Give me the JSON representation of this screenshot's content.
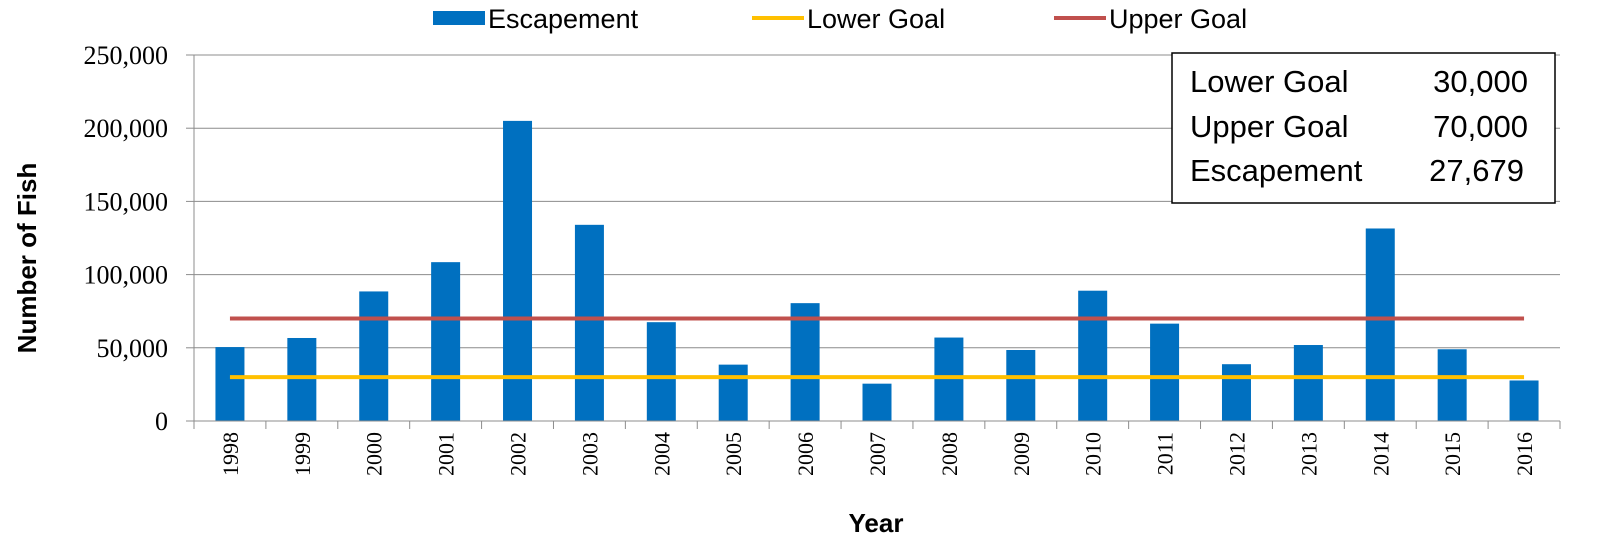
{
  "chart_data": {
    "type": "bar",
    "xlabel": "Year",
    "ylabel": "Number of Fish",
    "ylim": [
      0,
      250000
    ],
    "yticks": [
      0,
      50000,
      100000,
      150000,
      200000,
      250000
    ],
    "ytick_labels": [
      "0",
      "50,000",
      "100,000",
      "150,000",
      "200,000",
      "250,000"
    ],
    "grid": true,
    "legend_position": "top",
    "categories": [
      "1998",
      "1999",
      "2000",
      "2001",
      "2002",
      "2003",
      "2004",
      "2005",
      "2006",
      "2007",
      "2008",
      "2009",
      "2010",
      "2011",
      "2012",
      "2013",
      "2014",
      "2015",
      "2016"
    ],
    "series": [
      {
        "name": "Escapement",
        "kind": "bar",
        "color": "#0070C0",
        "values": [
          50500,
          56700,
          88500,
          108500,
          205000,
          134000,
          67500,
          38500,
          80500,
          25500,
          57000,
          48500,
          89000,
          66500,
          38800,
          51900,
          131500,
          49000,
          27679
        ]
      },
      {
        "name": "Lower Goal",
        "kind": "line",
        "color": "#FFC000",
        "values": [
          30000,
          30000,
          30000,
          30000,
          30000,
          30000,
          30000,
          30000,
          30000,
          30000,
          30000,
          30000,
          30000,
          30000,
          30000,
          30000,
          30000,
          30000,
          30000
        ]
      },
      {
        "name": "Upper Goal",
        "kind": "line",
        "color": "#C0504D",
        "values": [
          70000,
          70000,
          70000,
          70000,
          70000,
          70000,
          70000,
          70000,
          70000,
          70000,
          70000,
          70000,
          70000,
          70000,
          70000,
          70000,
          70000,
          70000,
          70000
        ]
      }
    ],
    "annotation_box": {
      "rows": [
        {
          "label": "Lower Goal",
          "value": "30,000"
        },
        {
          "label": "Upper Goal",
          "value": "70,000"
        },
        {
          "label": "Escapement",
          "value": "27,679"
        }
      ]
    }
  }
}
